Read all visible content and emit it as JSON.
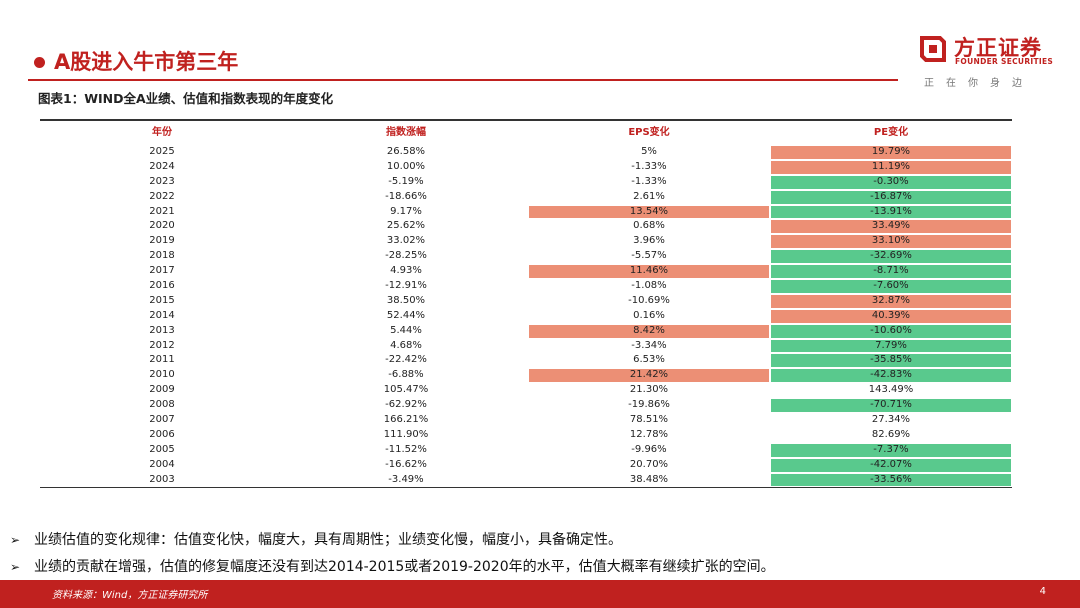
{
  "header": {
    "title": "A股进入牛市第三年"
  },
  "logo": {
    "name": "方正证券",
    "english": "FOUNDER SECURITIES",
    "slogan": "正在你身边"
  },
  "figure": {
    "caption": "图表1：WIND全A业绩、估值和指数表现的年度变化"
  },
  "colors": {
    "accent": "#c0211f",
    "highlight_up": "#ec8f75",
    "highlight_down": "#59c98d"
  },
  "table": {
    "columns": [
      "年份",
      "指数涨幅",
      "EPS变化",
      "PE变化"
    ],
    "rows": [
      {
        "year": "2025",
        "index": "26.58%",
        "eps": "5%",
        "pe": "19.79%",
        "eps_hl": "",
        "pe_hl": "red"
      },
      {
        "year": "2024",
        "index": "10.00%",
        "eps": "-1.33%",
        "pe": "11.19%",
        "eps_hl": "",
        "pe_hl": "red"
      },
      {
        "year": "2023",
        "index": "-5.19%",
        "eps": "-1.33%",
        "pe": "-0.30%",
        "eps_hl": "",
        "pe_hl": "green"
      },
      {
        "year": "2022",
        "index": "-18.66%",
        "eps": "2.61%",
        "pe": "-16.87%",
        "eps_hl": "",
        "pe_hl": "green"
      },
      {
        "year": "2021",
        "index": "9.17%",
        "eps": "13.54%",
        "pe": "-13.91%",
        "eps_hl": "red",
        "pe_hl": "green"
      },
      {
        "year": "2020",
        "index": "25.62%",
        "eps": "0.68%",
        "pe": "33.49%",
        "eps_hl": "",
        "pe_hl": "red"
      },
      {
        "year": "2019",
        "index": "33.02%",
        "eps": "3.96%",
        "pe": "33.10%",
        "eps_hl": "",
        "pe_hl": "red"
      },
      {
        "year": "2018",
        "index": "-28.25%",
        "eps": "-5.57%",
        "pe": "-32.69%",
        "eps_hl": "",
        "pe_hl": "green"
      },
      {
        "year": "2017",
        "index": "4.93%",
        "eps": "11.46%",
        "pe": "-8.71%",
        "eps_hl": "red",
        "pe_hl": "green"
      },
      {
        "year": "2016",
        "index": "-12.91%",
        "eps": "-1.08%",
        "pe": "-7.60%",
        "eps_hl": "",
        "pe_hl": "green"
      },
      {
        "year": "2015",
        "index": "38.50%",
        "eps": "-10.69%",
        "pe": "32.87%",
        "eps_hl": "",
        "pe_hl": "red"
      },
      {
        "year": "2014",
        "index": "52.44%",
        "eps": "0.16%",
        "pe": "40.39%",
        "eps_hl": "",
        "pe_hl": "red"
      },
      {
        "year": "2013",
        "index": "5.44%",
        "eps": "8.42%",
        "pe": "-10.60%",
        "eps_hl": "red",
        "pe_hl": "green"
      },
      {
        "year": "2012",
        "index": "4.68%",
        "eps": "-3.34%",
        "pe": "7.79%",
        "eps_hl": "",
        "pe_hl": "green"
      },
      {
        "year": "2011",
        "index": "-22.42%",
        "eps": "6.53%",
        "pe": "-35.85%",
        "eps_hl": "",
        "pe_hl": "green"
      },
      {
        "year": "2010",
        "index": "-6.88%",
        "eps": "21.42%",
        "pe": "-42.83%",
        "eps_hl": "red",
        "pe_hl": "green"
      },
      {
        "year": "2009",
        "index": "105.47%",
        "eps": "21.30%",
        "pe": "143.49%",
        "eps_hl": "",
        "pe_hl": ""
      },
      {
        "year": "2008",
        "index": "-62.92%",
        "eps": "-19.86%",
        "pe": "-70.71%",
        "eps_hl": "",
        "pe_hl": "green"
      },
      {
        "year": "2007",
        "index": "166.21%",
        "eps": "78.51%",
        "pe": "27.34%",
        "eps_hl": "",
        "pe_hl": ""
      },
      {
        "year": "2006",
        "index": "111.90%",
        "eps": "12.78%",
        "pe": "82.69%",
        "eps_hl": "",
        "pe_hl": ""
      },
      {
        "year": "2005",
        "index": "-11.52%",
        "eps": "-9.96%",
        "pe": "-7.37%",
        "eps_hl": "",
        "pe_hl": "green"
      },
      {
        "year": "2004",
        "index": "-16.62%",
        "eps": "20.70%",
        "pe": "-42.07%",
        "eps_hl": "",
        "pe_hl": "green"
      },
      {
        "year": "2003",
        "index": "-3.49%",
        "eps": "38.48%",
        "pe": "-33.56%",
        "eps_hl": "",
        "pe_hl": "green"
      }
    ]
  },
  "bullets": [
    "业绩估值的变化规律：估值变化快，幅度大，具有周期性；业绩变化慢，幅度小，具备确定性。",
    "业绩的贡献在增强，估值的修复幅度还没有到达2014-2015或者2019-2020年的水平，估值大概率有继续扩张的空间。"
  ],
  "bullet_glyph": "➢",
  "footer": {
    "source": "资料来源：Wind，方正证券研究所",
    "page": "4"
  }
}
